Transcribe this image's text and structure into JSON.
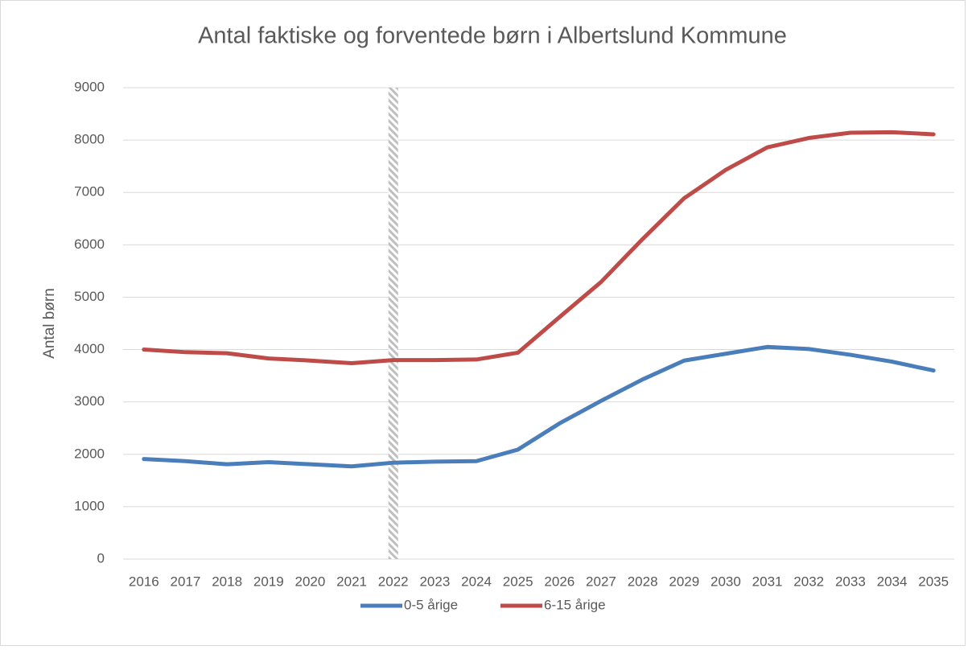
{
  "chart_data": {
    "type": "line",
    "title": "Antal faktiske og forventede børn i Albertslund Kommune",
    "y_label": "Antal børn",
    "categories": [
      "2016",
      "2017",
      "2018",
      "2019",
      "2020",
      "2021",
      "2022",
      "2023",
      "2024",
      "2025",
      "2026",
      "2027",
      "2028",
      "2029",
      "2030",
      "2031",
      "2032",
      "2033",
      "2034",
      "2035"
    ],
    "series": [
      {
        "name": "0-5 årige",
        "color": "#4a7ebb",
        "values": [
          1910,
          1870,
          1810,
          1850,
          1810,
          1770,
          1840,
          1860,
          1870,
          2090,
          2590,
          3020,
          3430,
          3790,
          3920,
          4050,
          4010,
          3900,
          3770,
          3600
        ]
      },
      {
        "name": "6-15 årige",
        "color": "#be4b48",
        "values": [
          4000,
          3950,
          3930,
          3830,
          3790,
          3740,
          3800,
          3800,
          3810,
          3940,
          4620,
          5290,
          6110,
          6890,
          7430,
          7860,
          8040,
          8140,
          8150,
          8110
        ]
      }
    ],
    "ylim": [
      0,
      9000
    ],
    "yticks": [
      0,
      1000,
      2000,
      3000,
      4000,
      5000,
      6000,
      7000,
      8000,
      9000
    ],
    "grid": true,
    "legend": "bottom"
  }
}
